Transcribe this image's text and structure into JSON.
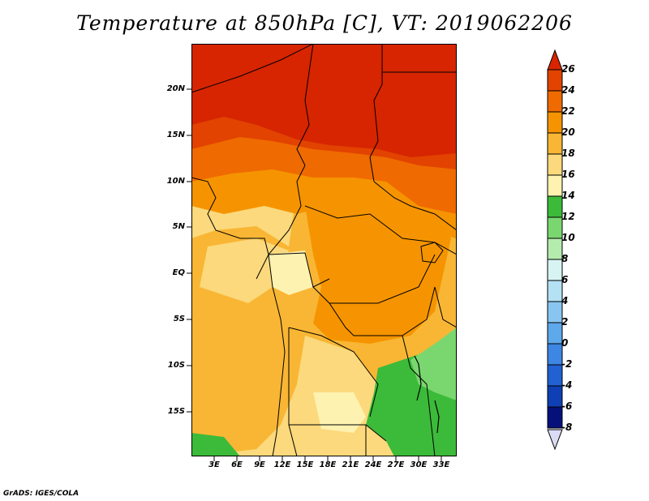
{
  "title": "Temperature at 850hPa [C], VT: 2019062206",
  "credit": "GrADS: IGES/COLA",
  "map": {
    "lat_labels": [
      "20N",
      "15N",
      "10N",
      "5N",
      "EQ",
      "5S",
      "10S",
      "15S"
    ],
    "lat_values": [
      20,
      15,
      10,
      5,
      0,
      -5,
      -10,
      -15
    ],
    "lon_labels": [
      "3E",
      "6E",
      "9E",
      "12E",
      "15E",
      "18E",
      "21E",
      "24E",
      "27E",
      "30E",
      "33E"
    ],
    "lon_values": [
      3,
      6,
      9,
      12,
      15,
      18,
      21,
      24,
      27,
      30,
      33
    ]
  },
  "colorbar": {
    "labels": [
      "26",
      "24",
      "22",
      "20",
      "18",
      "16",
      "14",
      "12",
      "10",
      "8",
      "6",
      "4",
      "2",
      "0",
      "-2",
      "-4",
      "-6",
      "-8"
    ],
    "colors": [
      "#d62500",
      "#e24300",
      "#ef6a00",
      "#f59400",
      "#f8b634",
      "#fbd97c",
      "#fdf2b0",
      "#3cba3a",
      "#7ad770",
      "#b4ecae",
      "#d8f4f2",
      "#b4e2f4",
      "#88c6f1",
      "#5ea8ec",
      "#3d86e3",
      "#2161d2",
      "#0f3fb4",
      "#06107a",
      "#dadcf6"
    ]
  }
}
